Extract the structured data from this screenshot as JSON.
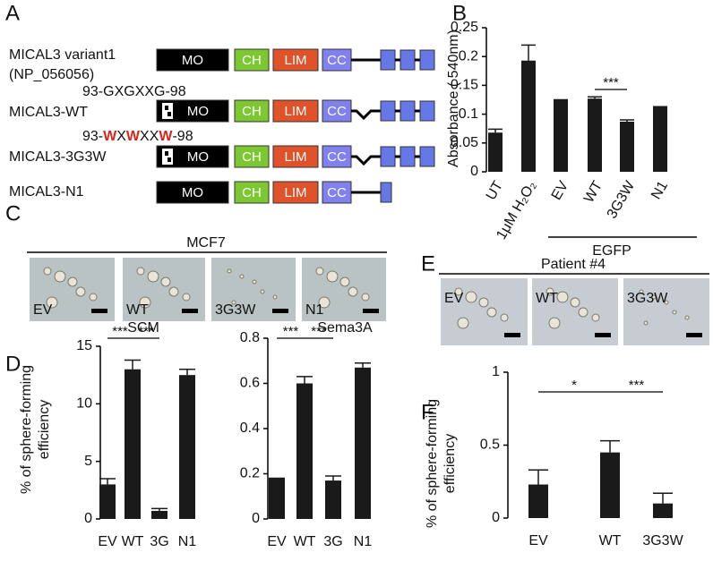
{
  "panels": [
    "A",
    "B",
    "C",
    "D",
    "E",
    "F"
  ],
  "diagram": {
    "domains": [
      "MO",
      "CH",
      "LIM",
      "CC"
    ],
    "rows": [
      {
        "name": "MICAL3 variant1",
        "accession": "(NP_056056)"
      },
      {
        "name": "MICAL3-WT",
        "motif": "93-GXGXXG-98"
      },
      {
        "name": "MICAL3-3G3W",
        "motif_parts": [
          "93-",
          "W",
          "X",
          "W",
          "XX",
          "W",
          "-98"
        ]
      },
      {
        "name": "MICAL3-N1"
      }
    ]
  },
  "images": [
    {
      "header": "MCF7",
      "labels": [
        "EV",
        "WT",
        "3G3W",
        "N1"
      ]
    },
    {
      "header": "Patient #4",
      "labels": [
        "EV",
        "WT",
        "3G3W"
      ]
    }
  ],
  "chart_data": [
    {
      "type": "bar",
      "y_label": "Absorbance ( 540nm)",
      "categories": [
        "UT",
        "1μM H₂O₂",
        "EV",
        "WT",
        "3G3W",
        "N1"
      ],
      "values": [
        0.068,
        0.193,
        0.125,
        0.127,
        0.087,
        0.113
      ],
      "errors": [
        0.006,
        0.027,
        0,
        0.003,
        0.003,
        0
      ],
      "ylim": [
        0,
        0.25
      ],
      "yticks": [
        0,
        0.05,
        0.1,
        0.15,
        0.2,
        0.25
      ],
      "annotations": [
        "***"
      ],
      "group_label": "EGFP",
      "color": "#1a1a1a"
    },
    {
      "type": "bar",
      "title": "SCM",
      "y_label": [
        "% of sphere-forming",
        "efficiency"
      ],
      "categories": [
        "EV",
        "WT",
        "3G",
        "N1"
      ],
      "values": [
        3.0,
        13.0,
        0.7,
        12.5
      ],
      "errors": [
        0.5,
        0.8,
        0.2,
        0.5
      ],
      "ylim": [
        0,
        15
      ],
      "yticks": [
        0,
        5,
        10,
        15
      ],
      "annotations": [
        "***",
        "***"
      ],
      "color": "#1a1a1a"
    },
    {
      "type": "bar",
      "title": "Sema3A",
      "categories": [
        "EV",
        "WT",
        "3G",
        "N1"
      ],
      "values": [
        0.18,
        0.6,
        0.17,
        0.67
      ],
      "errors": [
        0,
        0.03,
        0.02,
        0.02
      ],
      "ylim": [
        0,
        0.8
      ],
      "yticks": [
        0,
        0.2,
        0.4,
        0.6,
        0.8
      ],
      "annotations": [
        "***",
        "***"
      ],
      "color": "#1a1a1a"
    },
    {
      "type": "bar",
      "y_label": [
        "% of sphere-forming",
        "efficiency"
      ],
      "categories": [
        "EV",
        "WT",
        "3G3W"
      ],
      "values": [
        0.23,
        0.45,
        0.1
      ],
      "errors": [
        0.1,
        0.08,
        0.07
      ],
      "ylim": [
        0,
        1
      ],
      "yticks": [
        0,
        0.5,
        1
      ],
      "annotations": [
        "*",
        "***"
      ],
      "color": "#1a1a1a"
    }
  ]
}
